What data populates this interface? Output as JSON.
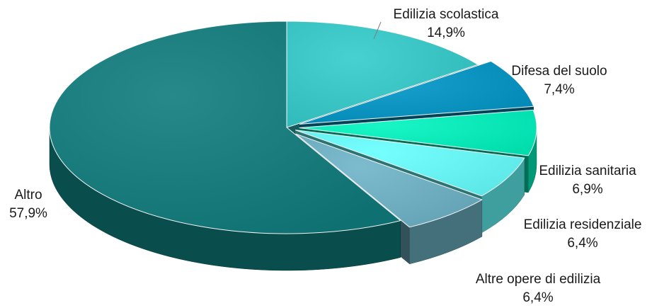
{
  "chart_data": {
    "type": "pie",
    "style": "3d exploded",
    "legend": "none",
    "slices": [
      {
        "label": "Edilizia scolastica",
        "value": 14.9,
        "display": "14,9%",
        "color": "#33CCCC"
      },
      {
        "label": "Difesa del suolo",
        "value": 7.4,
        "display": "7,4%",
        "color": "#0096C8"
      },
      {
        "label": "Edilizia sanitaria",
        "value": 6.9,
        "display": "6,9%",
        "color": "#00F5C0"
      },
      {
        "label": "Edilizia residenziale",
        "value": 6.4,
        "display": "6,4%",
        "color": "#66FFFF"
      },
      {
        "label": "Altre opere di edilizia",
        "value": 6.4,
        "display": "6,4%",
        "color": "#6EB4C8"
      },
      {
        "label": "Altro",
        "value": 57.9,
        "display": "57,9%",
        "color": "#0F7C7C"
      }
    ]
  }
}
